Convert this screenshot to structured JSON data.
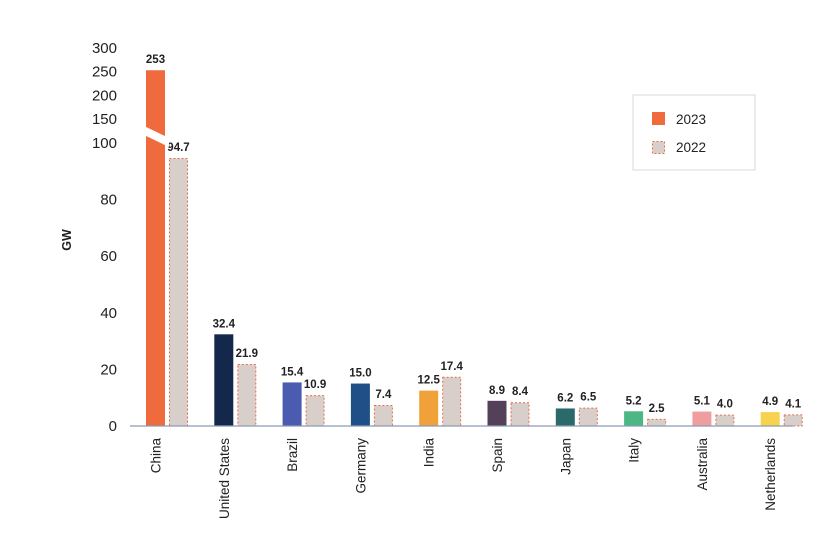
{
  "chart_data": {
    "type": "bar",
    "ylabel": "GW",
    "xlabel": "",
    "title": "",
    "categories": [
      "China",
      "United States",
      "Brazil",
      "Germany",
      "India",
      "Spain",
      "Japan",
      "Italy",
      "Australia",
      "Netherlands"
    ],
    "series": [
      {
        "name": "2023",
        "values": [
          253,
          32.4,
          15.4,
          15.0,
          12.5,
          8.9,
          6.2,
          5.2,
          5.1,
          4.9
        ],
        "value_labels": [
          "253",
          "32.4",
          "15.4",
          "15.0",
          "12.5",
          "8.9",
          "6.2",
          "5.2",
          "5.1",
          "4.9"
        ],
        "colors": [
          "#ef6a3c",
          "#14284b",
          "#4a5bb0",
          "#1f4f86",
          "#f0a13a",
          "#55405a",
          "#2b6a6a",
          "#4cb784",
          "#ef9ea0",
          "#f7d24e"
        ]
      },
      {
        "name": "2022",
        "values": [
          94.7,
          21.9,
          10.9,
          7.4,
          17.4,
          8.4,
          6.5,
          2.5,
          4.0,
          4.1
        ],
        "value_labels": [
          "94.7",
          "21.9",
          "10.9",
          "7.4",
          "17.4",
          "8.4",
          "6.5",
          "2.5",
          "4.0",
          "4.1"
        ],
        "fill": "#d8cfcb",
        "stroke": "#e46e4a"
      }
    ],
    "yticks_lower": [
      "0",
      "20",
      "40",
      "60",
      "80",
      "100"
    ],
    "yticks_upper": [
      "150",
      "200",
      "250",
      "300"
    ],
    "axis_break": true,
    "lower_range": [
      0,
      100
    ],
    "upper_range": [
      150,
      300
    ],
    "grid": false,
    "legend_position": "top-right"
  }
}
